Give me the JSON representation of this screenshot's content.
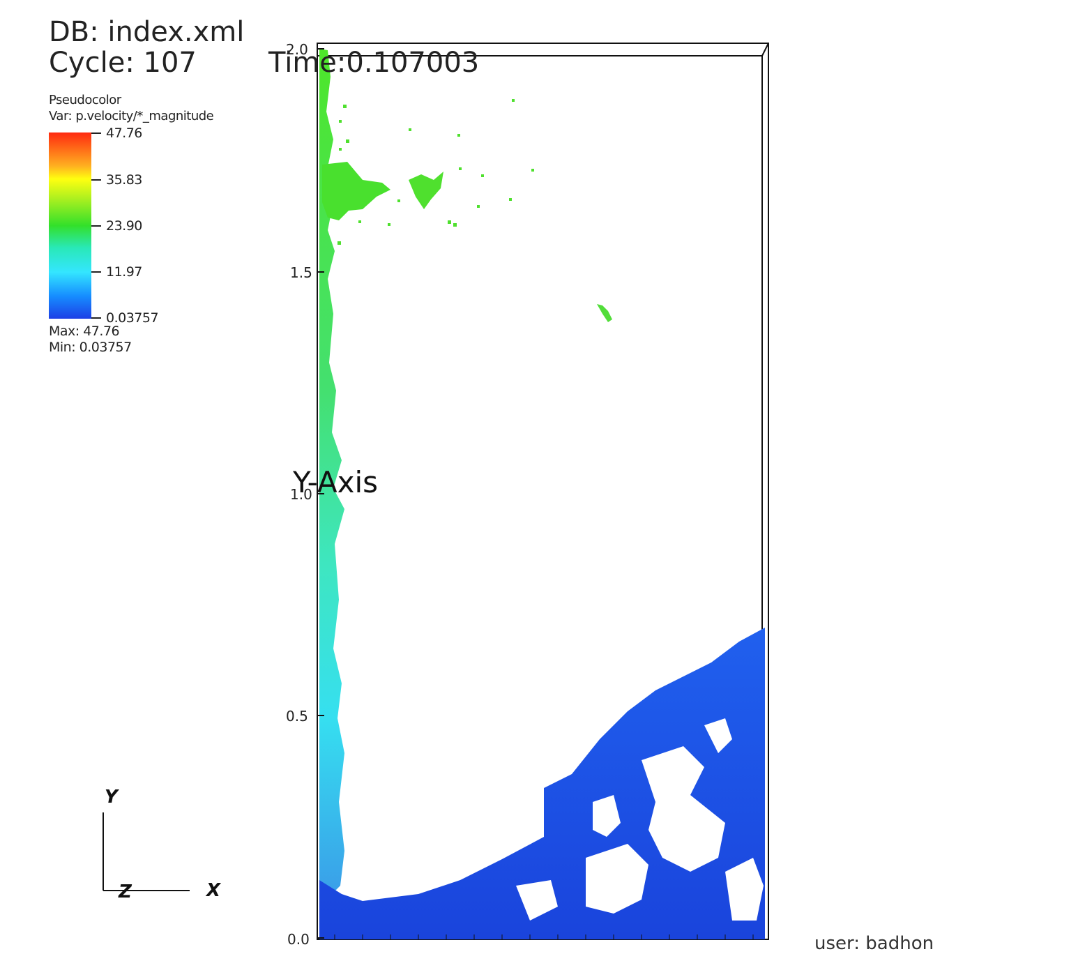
{
  "header": {
    "db": "DB: index.xml",
    "cycle": "Cycle: 107",
    "time": "Time:0.107003"
  },
  "legend": {
    "plot_name": "Pseudocolor",
    "variable": "Var: p.velocity/*_magnitude",
    "ticks": [
      "47.76",
      "35.83",
      "23.90",
      "11.97",
      "0.03757"
    ],
    "max": "Max:  47.76",
    "min": "Min:  0.03757",
    "colors": [
      "#ff2a10",
      "#ffff10",
      "#33e02a",
      "#34e6ff",
      "#1d3fe6"
    ]
  },
  "axes": {
    "y_title": "Y-Axis",
    "y_ticks": [
      "2.0",
      "1.5",
      "1.0",
      "0.5",
      "0.0"
    ],
    "triad": {
      "y": "Y",
      "x": "X",
      "z": "Z"
    }
  },
  "footer": {
    "user": "user: badhon"
  },
  "particle_colors": {
    "top_column": "#49e02e",
    "mid_column": "#3ee6b0",
    "lower_column": "#36d9f0",
    "pile": "#1f5ce8",
    "pile_dark": "#1838d8"
  }
}
